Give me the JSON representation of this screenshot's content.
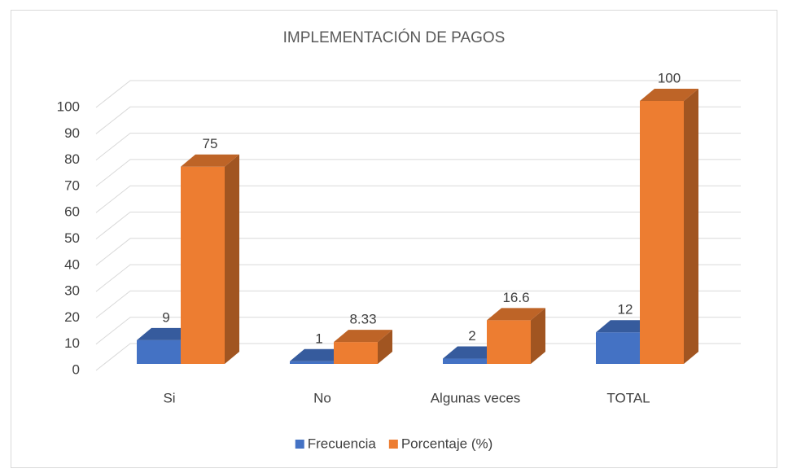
{
  "chart_data": {
    "type": "bar3d",
    "title": "IMPLEMENTACIÓN DE PAGOS",
    "categories": [
      "Si",
      "No",
      "Algunas veces",
      "TOTAL"
    ],
    "series": [
      {
        "name": "Frecuencia",
        "color": "#4472c4",
        "values": [
          9,
          1,
          2,
          12
        ]
      },
      {
        "name": "Porcentaje (%)",
        "color": "#ed7d31",
        "values": [
          75,
          8.33,
          16.6,
          100
        ]
      }
    ],
    "ylim": [
      0,
      100
    ],
    "yticks": [
      0,
      10,
      20,
      30,
      40,
      50,
      60,
      70,
      80,
      90,
      100
    ],
    "grid": true,
    "legend": "bottom"
  }
}
